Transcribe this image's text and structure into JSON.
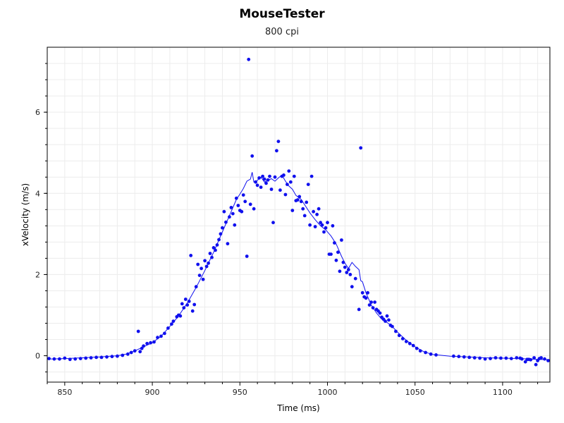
{
  "chart_data": {
    "type": "scatter",
    "title": "MouseTester",
    "subtitle": "800 cpi",
    "xlabel": "Time (ms)",
    "ylabel": "xVelocity (m/s)",
    "xlim": [
      840,
      1127
    ],
    "ylim": [
      -0.65,
      7.6
    ],
    "xticks": [
      850,
      900,
      950,
      1000,
      1050,
      1100
    ],
    "yticks": [
      0,
      2,
      4,
      6
    ],
    "grid": true,
    "legend": "none",
    "point_color": "#1010ee",
    "line_color": "#1010ee",
    "series": [
      {
        "type": "scatter",
        "points": [
          [
            841,
            -0.07
          ],
          [
            844,
            -0.08
          ],
          [
            847,
            -0.08
          ],
          [
            850,
            -0.06
          ],
          [
            853,
            -0.09
          ],
          [
            856,
            -0.08
          ],
          [
            859,
            -0.07
          ],
          [
            862,
            -0.06
          ],
          [
            865,
            -0.05
          ],
          [
            868,
            -0.04
          ],
          [
            871,
            -0.04
          ],
          [
            874,
            -0.03
          ],
          [
            877,
            -0.02
          ],
          [
            880,
            -0.01
          ],
          [
            883,
            0.01
          ],
          [
            886,
            0.04
          ],
          [
            888,
            0.08
          ],
          [
            890,
            0.12
          ],
          [
            892,
            0.6
          ],
          [
            893,
            0.1
          ],
          [
            894,
            0.18
          ],
          [
            895,
            0.24
          ],
          [
            897,
            0.3
          ],
          [
            899,
            0.32
          ],
          [
            901,
            0.34
          ],
          [
            903,
            0.45
          ],
          [
            905,
            0.48
          ],
          [
            907,
            0.55
          ],
          [
            909,
            0.68
          ],
          [
            911,
            0.78
          ],
          [
            912,
            0.85
          ],
          [
            914,
            0.96
          ],
          [
            915,
            1.0
          ],
          [
            916,
            0.98
          ],
          [
            917,
            1.28
          ],
          [
            918,
            1.18
          ],
          [
            919,
            1.39
          ],
          [
            920,
            1.25
          ],
          [
            921,
            1.34
          ],
          [
            922,
            2.47
          ],
          [
            923,
            1.1
          ],
          [
            924,
            1.26
          ],
          [
            925,
            1.7
          ],
          [
            926,
            2.25
          ],
          [
            927,
            1.98
          ],
          [
            928,
            2.15
          ],
          [
            929,
            1.88
          ],
          [
            930,
            2.34
          ],
          [
            931,
            2.2
          ],
          [
            932,
            2.28
          ],
          [
            933,
            2.52
          ],
          [
            934,
            2.42
          ],
          [
            935,
            2.66
          ],
          [
            936,
            2.6
          ],
          [
            937,
            2.73
          ],
          [
            938,
            2.86
          ],
          [
            939,
            3.0
          ],
          [
            940,
            3.15
          ],
          [
            941,
            3.55
          ],
          [
            942,
            3.29
          ],
          [
            943,
            2.76
          ],
          [
            944,
            3.42
          ],
          [
            945,
            3.65
          ],
          [
            946,
            3.5
          ],
          [
            947,
            3.22
          ],
          [
            948,
            3.88
          ],
          [
            949,
            3.7
          ],
          [
            950,
            3.58
          ],
          [
            951,
            3.55
          ],
          [
            952,
            3.96
          ],
          [
            953,
            3.8
          ],
          [
            954,
            2.45
          ],
          [
            955,
            7.3
          ],
          [
            956,
            3.73
          ],
          [
            957,
            4.92
          ],
          [
            958,
            3.62
          ],
          [
            959,
            4.28
          ],
          [
            960,
            4.2
          ],
          [
            961,
            4.38
          ],
          [
            962,
            4.15
          ],
          [
            963,
            4.42
          ],
          [
            964,
            4.35
          ],
          [
            965,
            4.25
          ],
          [
            966,
            4.33
          ],
          [
            967,
            4.42
          ],
          [
            968,
            4.1
          ],
          [
            969,
            3.28
          ],
          [
            970,
            4.4
          ],
          [
            971,
            5.05
          ],
          [
            972,
            5.28
          ],
          [
            973,
            4.08
          ],
          [
            974,
            4.42
          ],
          [
            975,
            4.45
          ],
          [
            976,
            3.97
          ],
          [
            977,
            4.22
          ],
          [
            978,
            4.55
          ],
          [
            979,
            4.28
          ],
          [
            980,
            3.58
          ],
          [
            981,
            4.42
          ],
          [
            982,
            3.82
          ],
          [
            983,
            3.84
          ],
          [
            984,
            3.92
          ],
          [
            985,
            3.8
          ],
          [
            986,
            3.62
          ],
          [
            987,
            3.45
          ],
          [
            988,
            3.78
          ],
          [
            989,
            4.22
          ],
          [
            990,
            3.22
          ],
          [
            991,
            4.42
          ],
          [
            992,
            3.55
          ],
          [
            993,
            3.18
          ],
          [
            994,
            3.48
          ],
          [
            995,
            3.62
          ],
          [
            996,
            3.28
          ],
          [
            997,
            3.22
          ],
          [
            998,
            3.05
          ],
          [
            999,
            3.15
          ],
          [
            1000,
            3.28
          ],
          [
            1001,
            2.5
          ],
          [
            1002,
            2.5
          ],
          [
            1003,
            3.2
          ],
          [
            1004,
            2.78
          ],
          [
            1005,
            2.35
          ],
          [
            1006,
            2.55
          ],
          [
            1007,
            2.08
          ],
          [
            1008,
            2.85
          ],
          [
            1009,
            2.3
          ],
          [
            1010,
            2.18
          ],
          [
            1011,
            2.05
          ],
          [
            1012,
            2.12
          ],
          [
            1013,
            2.0
          ],
          [
            1014,
            1.7
          ],
          [
            1016,
            1.9
          ],
          [
            1018,
            1.14
          ],
          [
            1019,
            5.12
          ],
          [
            1020,
            1.55
          ],
          [
            1021,
            1.45
          ],
          [
            1022,
            1.42
          ],
          [
            1023,
            1.55
          ],
          [
            1024,
            1.25
          ],
          [
            1025,
            1.32
          ],
          [
            1026,
            1.18
          ],
          [
            1027,
            1.32
          ],
          [
            1028,
            1.14
          ],
          [
            1029,
            1.1
          ],
          [
            1030,
            1.05
          ],
          [
            1031,
            0.95
          ],
          [
            1032,
            0.9
          ],
          [
            1033,
            0.85
          ],
          [
            1034,
            0.98
          ],
          [
            1035,
            0.88
          ],
          [
            1036,
            0.75
          ],
          [
            1037,
            0.72
          ],
          [
            1039,
            0.6
          ],
          [
            1041,
            0.5
          ],
          [
            1043,
            0.42
          ],
          [
            1045,
            0.35
          ],
          [
            1047,
            0.3
          ],
          [
            1049,
            0.25
          ],
          [
            1051,
            0.18
          ],
          [
            1053,
            0.12
          ],
          [
            1056,
            0.08
          ],
          [
            1059,
            0.04
          ],
          [
            1062,
            0.02
          ],
          [
            1072,
            -0.01
          ],
          [
            1075,
            -0.02
          ],
          [
            1078,
            -0.03
          ],
          [
            1081,
            -0.04
          ],
          [
            1084,
            -0.05
          ],
          [
            1087,
            -0.06
          ],
          [
            1090,
            -0.08
          ],
          [
            1093,
            -0.07
          ],
          [
            1096,
            -0.05
          ],
          [
            1099,
            -0.06
          ],
          [
            1102,
            -0.06
          ],
          [
            1105,
            -0.07
          ],
          [
            1108,
            -0.05
          ],
          [
            1111,
            -0.08
          ],
          [
            1114,
            -0.09
          ],
          [
            1116,
            -0.1
          ],
          [
            1118,
            -0.05
          ],
          [
            1120,
            -0.12
          ],
          [
            1122,
            -0.05
          ],
          [
            1124,
            -0.08
          ],
          [
            1126,
            -0.12
          ],
          [
            1113,
            -0.15
          ],
          [
            1110,
            -0.06
          ],
          [
            1115,
            -0.09
          ],
          [
            1119,
            -0.22
          ],
          [
            1121,
            -0.07
          ]
        ]
      },
      {
        "type": "line",
        "points": [
          [
            841,
            -0.08
          ],
          [
            850,
            -0.07
          ],
          [
            860,
            -0.05
          ],
          [
            870,
            -0.03
          ],
          [
            880,
            0.0
          ],
          [
            885,
            0.04
          ],
          [
            890,
            0.12
          ],
          [
            895,
            0.22
          ],
          [
            900,
            0.32
          ],
          [
            905,
            0.48
          ],
          [
            910,
            0.72
          ],
          [
            915,
            0.98
          ],
          [
            920,
            1.3
          ],
          [
            925,
            1.68
          ],
          [
            930,
            2.1
          ],
          [
            935,
            2.55
          ],
          [
            940,
            3.05
          ],
          [
            945,
            3.55
          ],
          [
            948,
            3.85
          ],
          [
            950,
            3.98
          ],
          [
            952,
            4.12
          ],
          [
            954,
            4.3
          ],
          [
            956,
            4.35
          ],
          [
            957,
            4.52
          ],
          [
            958,
            4.28
          ],
          [
            960,
            4.32
          ],
          [
            962,
            4.4
          ],
          [
            964,
            4.28
          ],
          [
            966,
            4.32
          ],
          [
            968,
            4.36
          ],
          [
            970,
            4.3
          ],
          [
            972,
            4.38
          ],
          [
            974,
            4.45
          ],
          [
            976,
            4.3
          ],
          [
            978,
            4.18
          ],
          [
            980,
            4.1
          ],
          [
            982,
            3.95
          ],
          [
            985,
            3.85
          ],
          [
            988,
            3.65
          ],
          [
            990,
            3.52
          ],
          [
            993,
            3.35
          ],
          [
            996,
            3.2
          ],
          [
            999,
            3.1
          ],
          [
            1002,
            2.95
          ],
          [
            1005,
            2.75
          ],
          [
            1008,
            2.45
          ],
          [
            1010,
            2.28
          ],
          [
            1012,
            2.15
          ],
          [
            1014,
            2.3
          ],
          [
            1016,
            2.2
          ],
          [
            1018,
            2.12
          ],
          [
            1019,
            1.85
          ],
          [
            1020,
            1.82
          ],
          [
            1022,
            1.55
          ],
          [
            1025,
            1.25
          ],
          [
            1028,
            1.05
          ],
          [
            1031,
            0.9
          ],
          [
            1034,
            0.82
          ],
          [
            1037,
            0.72
          ],
          [
            1040,
            0.58
          ],
          [
            1045,
            0.38
          ],
          [
            1050,
            0.22
          ],
          [
            1055,
            0.1
          ],
          [
            1060,
            0.03
          ],
          [
            1070,
            -0.01
          ],
          [
            1080,
            -0.03
          ],
          [
            1090,
            -0.05
          ],
          [
            1100,
            -0.06
          ],
          [
            1110,
            -0.07
          ],
          [
            1115,
            -0.08
          ],
          [
            1120,
            -0.09
          ],
          [
            1127,
            -0.1
          ]
        ]
      }
    ]
  }
}
